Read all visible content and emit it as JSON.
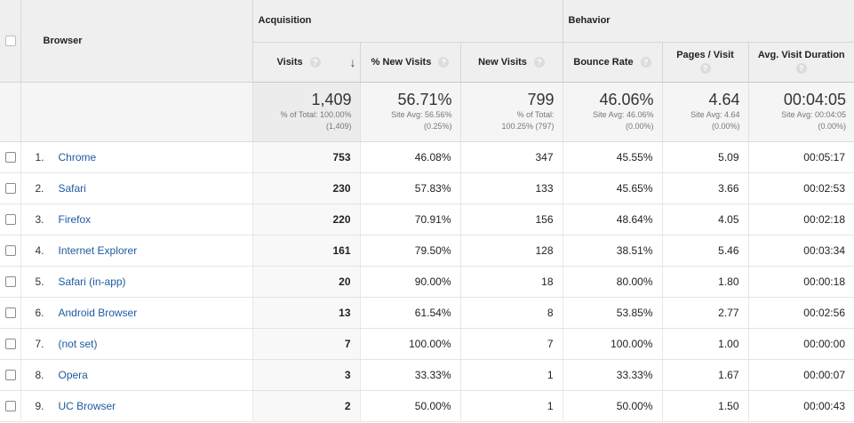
{
  "header": {
    "browser_label": "Browser",
    "group_acquisition": "Acquisition",
    "group_behavior": "Behavior",
    "col_visits": "Visits",
    "col_new_pct": "% New Visits",
    "col_new_visits": "New Visits",
    "col_bounce": "Bounce Rate",
    "col_pages": "Pages / Visit",
    "col_duration": "Avg. Visit Duration",
    "help_glyph": "?",
    "sort_glyph": "↓"
  },
  "totals": {
    "visits": {
      "value": "1,409",
      "sub1": "% of Total: 100.00%",
      "sub2": "(1,409)"
    },
    "new_pct": {
      "value": "56.71%",
      "sub1": "Site Avg: 56.56%",
      "sub2": "(0.25%)"
    },
    "new_visits": {
      "value": "799",
      "sub1": "% of Total:",
      "sub2": "100.25% (797)"
    },
    "bounce": {
      "value": "46.06%",
      "sub1": "Site Avg: 46.06%",
      "sub2": "(0.00%)"
    },
    "pages": {
      "value": "4.64",
      "sub1": "Site Avg: 4.64",
      "sub2": "(0.00%)"
    },
    "duration": {
      "value": "00:04:05",
      "sub1": "Site Avg: 00:04:05",
      "sub2": "(0.00%)"
    }
  },
  "rows": [
    {
      "index": "1.",
      "browser": "Chrome",
      "visits": "753",
      "new_pct": "46.08%",
      "new_visits": "347",
      "bounce": "45.55%",
      "pages": "5.09",
      "duration": "00:05:17"
    },
    {
      "index": "2.",
      "browser": "Safari",
      "visits": "230",
      "new_pct": "57.83%",
      "new_visits": "133",
      "bounce": "45.65%",
      "pages": "3.66",
      "duration": "00:02:53"
    },
    {
      "index": "3.",
      "browser": "Firefox",
      "visits": "220",
      "new_pct": "70.91%",
      "new_visits": "156",
      "bounce": "48.64%",
      "pages": "4.05",
      "duration": "00:02:18"
    },
    {
      "index": "4.",
      "browser": "Internet Explorer",
      "visits": "161",
      "new_pct": "79.50%",
      "new_visits": "128",
      "bounce": "38.51%",
      "pages": "5.46",
      "duration": "00:03:34"
    },
    {
      "index": "5.",
      "browser": "Safari (in-app)",
      "visits": "20",
      "new_pct": "90.00%",
      "new_visits": "18",
      "bounce": "80.00%",
      "pages": "1.80",
      "duration": "00:00:18"
    },
    {
      "index": "6.",
      "browser": "Android Browser",
      "visits": "13",
      "new_pct": "61.54%",
      "new_visits": "8",
      "bounce": "53.85%",
      "pages": "2.77",
      "duration": "00:02:56"
    },
    {
      "index": "7.",
      "browser": "(not set)",
      "visits": "7",
      "new_pct": "100.00%",
      "new_visits": "7",
      "bounce": "100.00%",
      "pages": "1.00",
      "duration": "00:00:00"
    },
    {
      "index": "8.",
      "browser": "Opera",
      "visits": "3",
      "new_pct": "33.33%",
      "new_visits": "1",
      "bounce": "33.33%",
      "pages": "1.67",
      "duration": "00:00:07"
    },
    {
      "index": "9.",
      "browser": "UC Browser",
      "visits": "2",
      "new_pct": "50.00%",
      "new_visits": "1",
      "bounce": "50.00%",
      "pages": "1.50",
      "duration": "00:00:43"
    }
  ]
}
